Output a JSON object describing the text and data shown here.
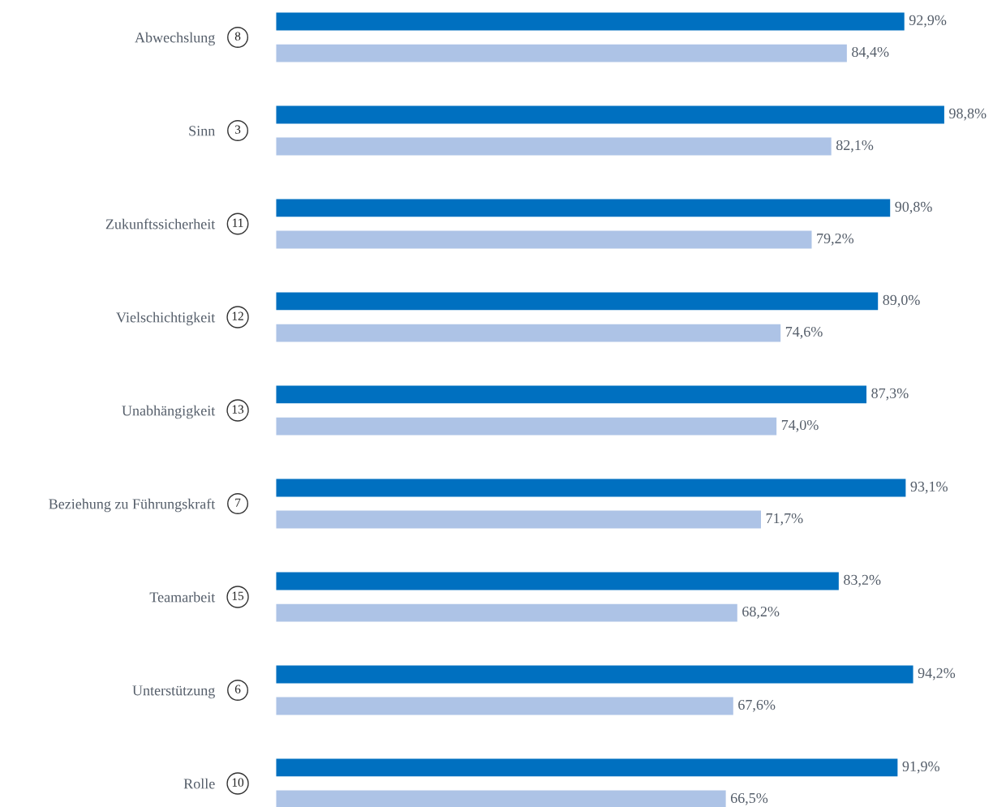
{
  "chart_data": {
    "type": "bar",
    "orientation": "horizontal",
    "categories": [
      "Abwechslung",
      "Sinn",
      "Zukunftssicherheit",
      "Vielschichtigkeit",
      "Unabhängigkeit",
      "Beziehung zu Führungskraft",
      "Teamarbeit",
      "Unterstützung",
      "Rolle"
    ],
    "series": [
      {
        "color": "#0070c0",
        "values": [
          92.9,
          98.8,
          90.8,
          89.0,
          87.3,
          93.1,
          83.2,
          94.2,
          91.9
        ],
        "value_labels": [
          "92,9%",
          "98,8%",
          "90,8%",
          "89,0%",
          "87,3%",
          "93,1%",
          "83,2%",
          "94,2%",
          "91,9%"
        ]
      },
      {
        "color": "#adc3e6",
        "values": [
          84.4,
          82.1,
          79.2,
          74.6,
          74.0,
          71.7,
          68.2,
          67.6,
          66.5
        ],
        "value_labels": [
          "84,4%",
          "82,1%",
          "79,2%",
          "74,6%",
          "74,0%",
          "71,7%",
          "68,2%",
          "67,6%",
          "66,5%"
        ]
      }
    ],
    "tick_labels": "y",
    "grid": false,
    "legend": false,
    "annotations": [
      "8",
      "3",
      "11",
      "12",
      "13",
      "7",
      "15",
      "6",
      "10"
    ]
  }
}
